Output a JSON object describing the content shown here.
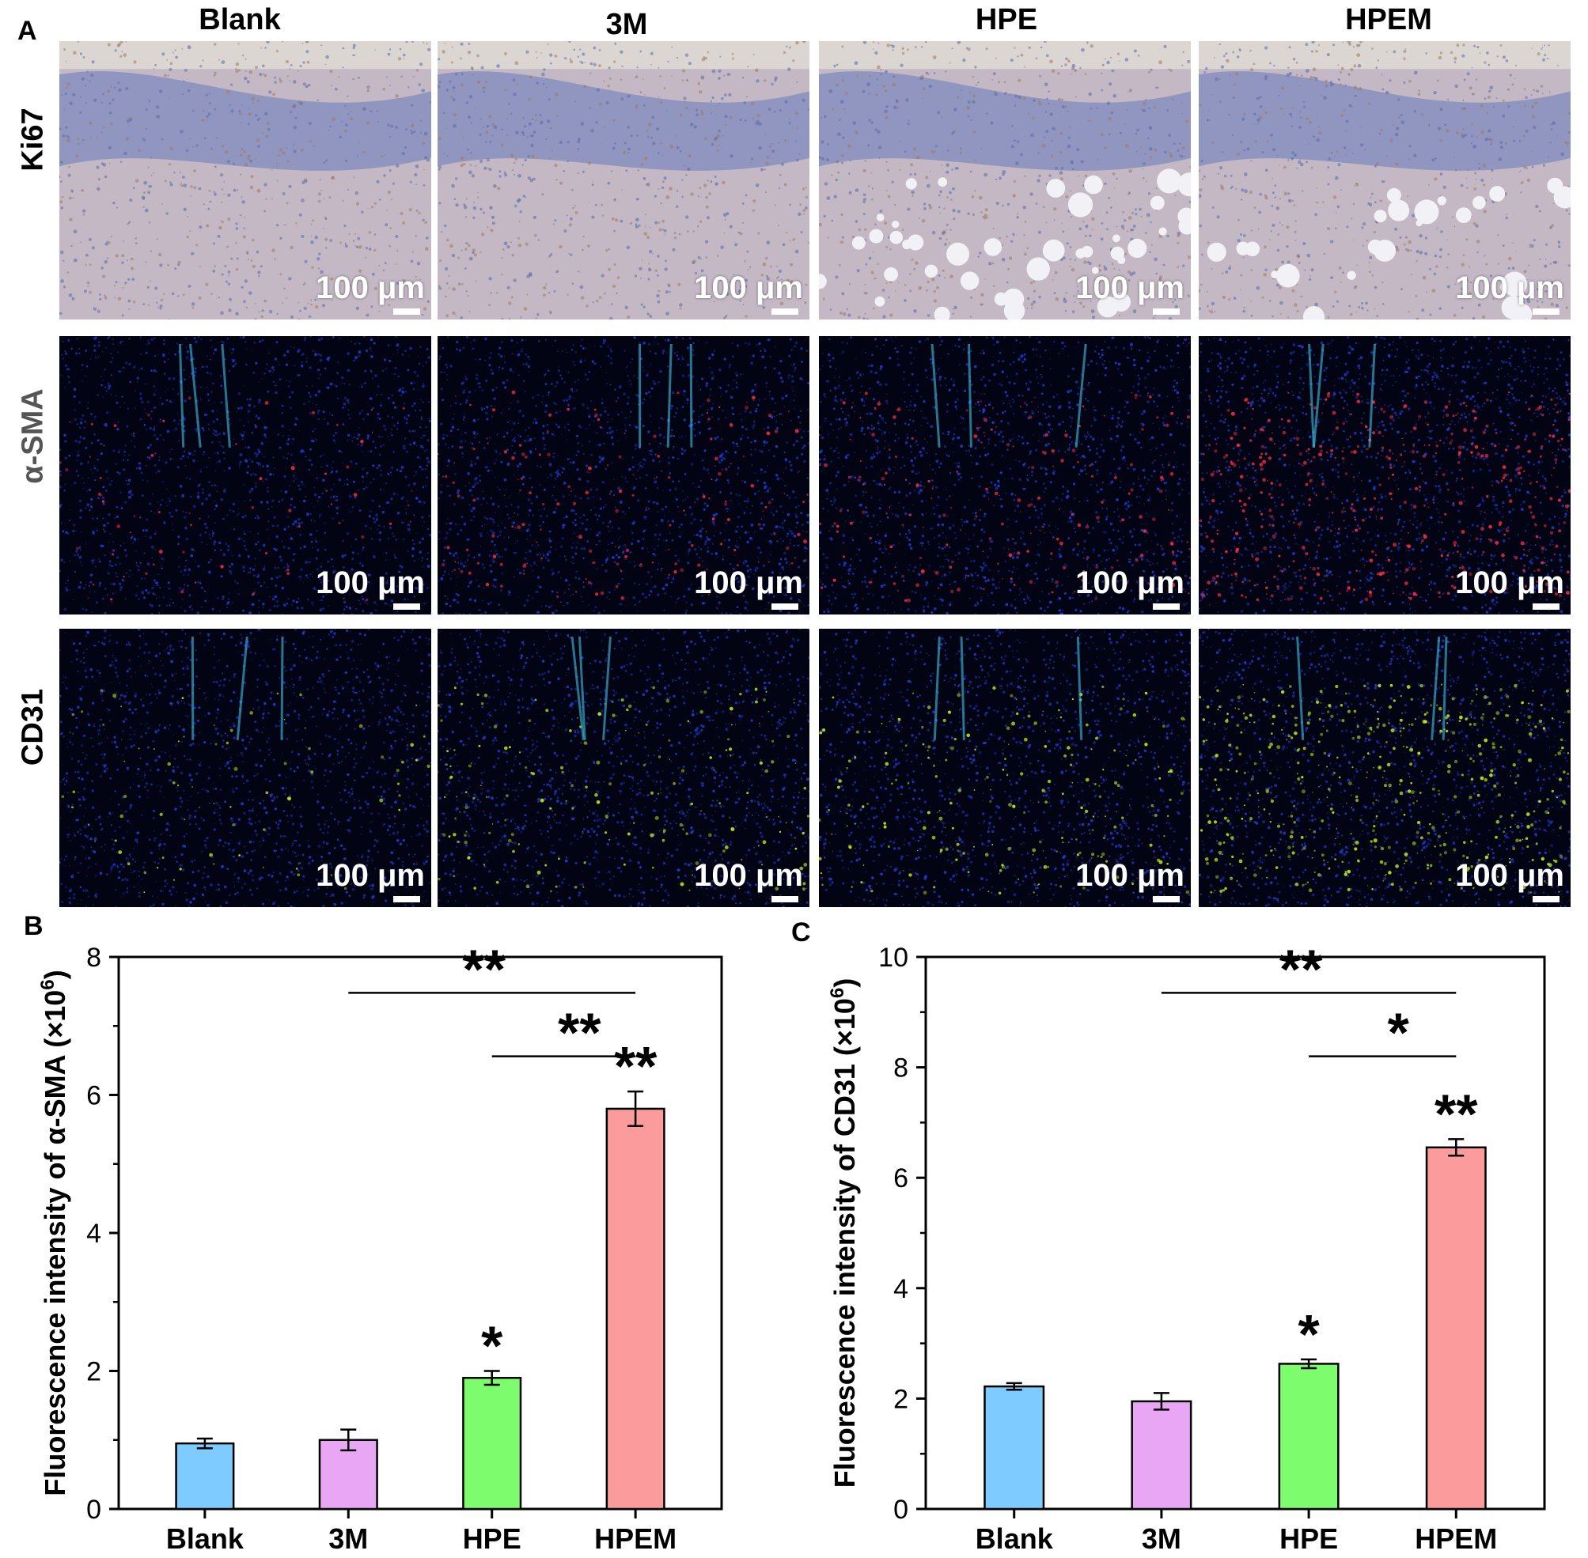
{
  "panel_labels": {
    "a": "A",
    "b": "B",
    "c": "C"
  },
  "columns": [
    "Blank",
    "3M",
    "HPE",
    "HPEM"
  ],
  "rows": [
    {
      "label": "Ki67",
      "label_color": "#000000",
      "style": "ihc"
    },
    {
      "label": "α-SMA",
      "label_color": "#555555",
      "style": "fluor-red"
    },
    {
      "label": "CD31",
      "label_color": "#000000",
      "style": "fluor-green"
    }
  ],
  "scale_bar_label": "100 μm",
  "chart_data": [
    {
      "type": "bar",
      "categories": [
        "Blank",
        "3M",
        "HPE",
        "HPEM"
      ],
      "values": [
        0.95,
        1.0,
        1.9,
        5.8
      ],
      "errors": [
        0.07,
        0.15,
        0.1,
        0.25
      ],
      "colors": [
        "#7ecbff",
        "#e8a6f5",
        "#7dfc6e",
        "#fc9b9b"
      ],
      "ylabel": "Fluorescence intensity of α-SMA (×10",
      "ylabel_sup": "6",
      "ylabel_suffix": ")",
      "ylim": [
        0,
        8
      ],
      "yticks": [
        "0",
        "2",
        "4",
        "6",
        "8"
      ],
      "bar_marks": [
        "",
        "",
        "*",
        "**"
      ],
      "brackets": [
        {
          "from": "3M",
          "to": "HPEM",
          "mark": "**"
        },
        {
          "from": "HPE",
          "to": "HPEM",
          "mark": "**"
        }
      ]
    },
    {
      "type": "bar",
      "categories": [
        "Blank",
        "3M",
        "HPE",
        "HPEM"
      ],
      "values": [
        2.22,
        1.95,
        2.63,
        6.55
      ],
      "errors": [
        0.06,
        0.15,
        0.08,
        0.15
      ],
      "colors": [
        "#7ecbff",
        "#e8a6f5",
        "#7dfc6e",
        "#fc9b9b"
      ],
      "ylabel": "Fluorescence intensity of CD31 (×10",
      "ylabel_sup": "6",
      "ylabel_suffix": ")",
      "ylim": [
        0,
        10
      ],
      "yticks": [
        "0",
        "2",
        "4",
        "6",
        "8",
        "10"
      ],
      "bar_marks": [
        "",
        "",
        "*",
        "**"
      ],
      "brackets": [
        {
          "from": "3M",
          "to": "HPEM",
          "mark": "**"
        },
        {
          "from": "HPE",
          "to": "HPEM",
          "mark": "*"
        }
      ]
    }
  ]
}
